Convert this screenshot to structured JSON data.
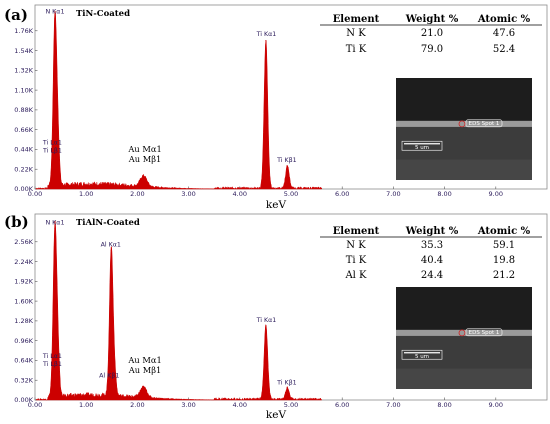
{
  "colors": {
    "spectrum": "#cc0000",
    "frame": "#8c8c8c",
    "tick_text": "#2a1a5a"
  },
  "chart_data": [
    {
      "type": "area",
      "panel": "(a)",
      "title": "TiN-Coated",
      "xlabel": "keV",
      "xlim": [
        0,
        10
      ],
      "ylim": [
        0,
        1980
      ],
      "x_ticks": [
        "0.00",
        "1.00",
        "2.00",
        "3.00",
        "4.00",
        "5.00",
        "6.00",
        "7.00",
        "8.00",
        "9.00"
      ],
      "y_ticks": [
        "0.00K",
        "0.22K",
        "0.44K",
        "0.66K",
        "0.88K",
        "1.10K",
        "1.32K",
        "1.54K",
        "1.76K"
      ],
      "peaks": [
        {
          "x": 0.39,
          "y": 1900,
          "width": 0.05
        },
        {
          "x": 0.45,
          "y": 420,
          "width": 0.04
        },
        {
          "x": 2.12,
          "y": 120,
          "width": 0.09
        },
        {
          "x": 4.51,
          "y": 1650,
          "width": 0.05
        },
        {
          "x": 4.93,
          "y": 250,
          "width": 0.05
        }
      ],
      "peak_labels": [
        {
          "x": 0.39,
          "y": 1930,
          "lines": [
            "N  Kα1"
          ]
        },
        {
          "x": 0.34,
          "y": 470,
          "lines": [
            "Ti Lα1",
            "Ti Lβ1"
          ]
        },
        {
          "x": 4.52,
          "y": 1680,
          "lines": [
            "Ti Kα1"
          ]
        },
        {
          "x": 4.92,
          "y": 280,
          "lines": [
            "Ti Kβ1"
          ]
        }
      ],
      "au_label": {
        "x": 2.15,
        "y": 410,
        "lines": [
          "Au Mα1",
          "Au Mβ1"
        ]
      },
      "table": {
        "headers": [
          "Element",
          "Weight %",
          "Atomic %"
        ],
        "rows": [
          [
            "N K",
            "21.0",
            "47.6"
          ],
          [
            "Ti K",
            "79.0",
            "52.4"
          ]
        ]
      },
      "sem": {
        "scale_label": "5 um",
        "spot_label": "EDS Spot 1"
      }
    },
    {
      "type": "area",
      "panel": "(b)",
      "title": "TiAlN-Coated",
      "xlabel": "keV",
      "xlim": [
        0,
        10
      ],
      "ylim": [
        0,
        2880
      ],
      "x_ticks": [
        "0.00",
        "1.00",
        "2.00",
        "3.00",
        "4.00",
        "5.00",
        "6.00",
        "7.00",
        "8.00",
        "9.00"
      ],
      "y_ticks": [
        "0.00K",
        "0.32K",
        "0.64K",
        "0.96K",
        "1.28K",
        "1.60K",
        "1.92K",
        "2.24K",
        "2.56K"
      ],
      "peaks": [
        {
          "x": 0.39,
          "y": 2780,
          "width": 0.05
        },
        {
          "x": 0.45,
          "y": 600,
          "width": 0.04
        },
        {
          "x": 1.49,
          "y": 2420,
          "width": 0.05
        },
        {
          "x": 1.56,
          "y": 300,
          "width": 0.04
        },
        {
          "x": 2.12,
          "y": 170,
          "width": 0.09
        },
        {
          "x": 4.51,
          "y": 1200,
          "width": 0.05
        },
        {
          "x": 4.93,
          "y": 190,
          "width": 0.05
        }
      ],
      "peak_labels": [
        {
          "x": 0.39,
          "y": 2810,
          "lines": [
            "N  Kα1"
          ]
        },
        {
          "x": 1.48,
          "y": 2450,
          "lines": [
            "Al Kα1"
          ]
        },
        {
          "x": 0.34,
          "y": 650,
          "lines": [
            "Ti Lα1",
            "Ti Lβ1"
          ]
        },
        {
          "x": 1.45,
          "y": 330,
          "lines": [
            "Al Kβ1"
          ]
        },
        {
          "x": 4.52,
          "y": 1230,
          "lines": [
            "Ti Kα1"
          ]
        },
        {
          "x": 4.92,
          "y": 215,
          "lines": [
            "Ti Kβ1"
          ]
        }
      ],
      "au_label": {
        "x": 2.15,
        "y": 600,
        "lines": [
          "Au Mα1",
          "Au Mβ1"
        ]
      },
      "table": {
        "headers": [
          "Element",
          "Weight %",
          "Atomic %"
        ],
        "rows": [
          [
            "N K",
            "35.3",
            "59.1"
          ],
          [
            "Ti K",
            "40.4",
            "19.8"
          ],
          [
            "Al K",
            "24.4",
            "21.2"
          ]
        ]
      },
      "sem": {
        "scale_label": "5 um",
        "spot_label": "EDS Spot 1"
      }
    }
  ]
}
